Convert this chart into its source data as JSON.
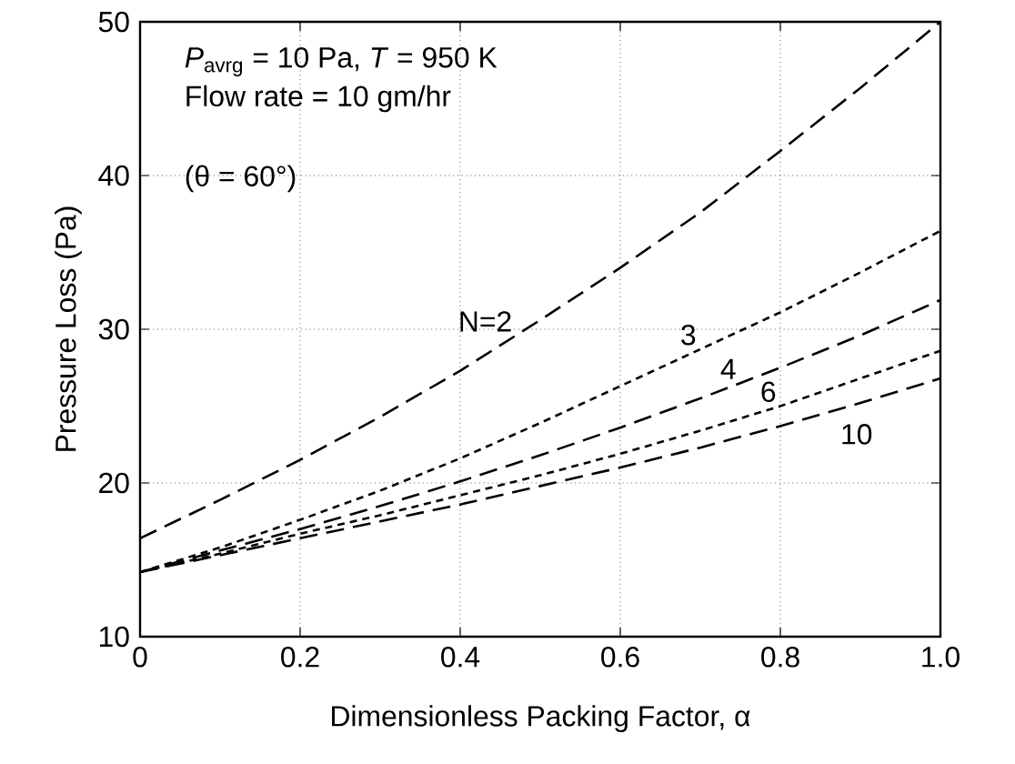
{
  "chart_data": {
    "type": "line",
    "xlabel": "Dimensionless Packing Factor, α",
    "ylabel": "Pressure Loss (Pa)",
    "x": [
      0,
      0.1,
      0.2,
      0.3,
      0.4,
      0.5,
      0.6,
      0.7,
      0.8,
      0.9,
      1.0
    ],
    "series": [
      {
        "color": "#000000",
        "line_style": "dashed",
        "values": [
          16.4,
          18.9,
          21.5,
          24.3,
          27.3,
          30.6,
          34.0,
          37.6,
          41.6,
          45.7,
          50.0
        ]
      },
      {
        "color": "#000000",
        "line_style": "dotted",
        "values": [
          14.2,
          15.8,
          17.6,
          19.5,
          21.6,
          23.9,
          26.3,
          28.7,
          31.1,
          33.7,
          36.4
        ]
      },
      {
        "color": "#000000",
        "line_style": "dashed",
        "values": [
          14.2,
          15.6,
          17.0,
          18.5,
          20.1,
          21.8,
          23.6,
          25.5,
          27.5,
          29.6,
          31.9
        ]
      },
      {
        "color": "#000000",
        "line_style": "dotted",
        "values": [
          14.2,
          15.4,
          16.7,
          17.9,
          19.2,
          20.5,
          21.9,
          23.4,
          25.0,
          26.8,
          28.6
        ]
      },
      {
        "color": "#000000",
        "line_style": "dashed",
        "values": [
          14.2,
          15.3,
          16.4,
          17.5,
          18.6,
          19.8,
          21.0,
          22.3,
          23.7,
          25.2,
          26.8
        ]
      }
    ],
    "xlim": [
      0,
      1.0
    ],
    "ylim": [
      10,
      50
    ],
    "xticks": [
      0,
      0.2,
      0.4,
      0.6,
      0.8,
      {
        "value": 1.0,
        "label": "1.0"
      }
    ],
    "yticks": [
      10,
      20,
      30,
      40,
      50
    ],
    "grid": true,
    "marker": "none",
    "annotations": [
      "*P*$_{avrg}$ = 10 Pa, *T* = 950 K",
      "Flow rate = 10 gm/hr",
      "(θ = 60°)",
      {
        "text": "N=2",
        "x": 0.47,
        "y": 29.6
      },
      {
        "text": "3",
        "x": 0.7,
        "y": 28.7
      },
      {
        "text": "4",
        "x": 0.75,
        "y": 26.5
      },
      {
        "text": "6",
        "x": 0.8,
        "y": 25.0
      },
      {
        "text": "10",
        "x": 0.87,
        "y": 24.1
      }
    ]
  }
}
